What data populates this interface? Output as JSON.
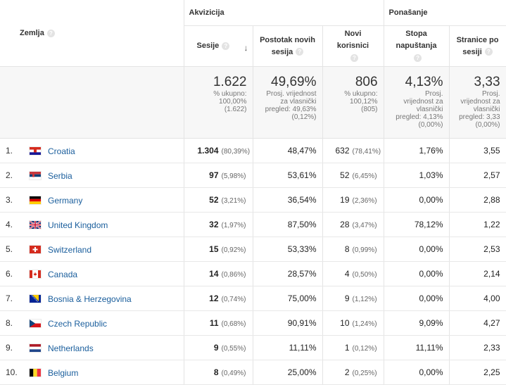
{
  "header": {
    "dimension": "Zemlja",
    "group_acquisition": "Akvizicija",
    "group_behavior": "Ponašanje",
    "m_sessions": "Sesije",
    "m_new_sessions_1": "Postotak novih",
    "m_new_sessions_2": "sesija",
    "m_new_users_1": "Novi",
    "m_new_users_2": "korisnici",
    "m_bounce_1": "Stopa",
    "m_bounce_2": "napuštanja",
    "m_pages_1": "Stranice po",
    "m_pages_2": "sesiji",
    "help": "?",
    "sort_arrow": "↓"
  },
  "totals": {
    "sessions": {
      "value": "1.622",
      "l1": "% ukupno:",
      "l2": "100,00%",
      "l3": "(1.622)"
    },
    "new_sessions": {
      "value": "49,69%",
      "l1": "Prosj. vrijednost",
      "l2": "za vlasnički",
      "l3": "pregled: 49,63%",
      "l4": "(0,12%)"
    },
    "new_users": {
      "value": "806",
      "l1": "% ukupno:",
      "l2": "100,12%",
      "l3": "(805)"
    },
    "bounce": {
      "value": "4,13%",
      "l1": "Prosj.",
      "l2": "vrijednost za",
      "l3": "vlasnički",
      "l4": "pregled: 4,13%",
      "l5": "(0,00%)"
    },
    "pages": {
      "value": "3,33",
      "l1": "Prosj.",
      "l2": "vrijednost za",
      "l3": "vlasnički",
      "l4": "pregled: 3,33",
      "l5": "(0,00%)"
    }
  },
  "rows": [
    {
      "rank": "1.",
      "country": "Croatia",
      "sessions": "1.304",
      "sessions_pct": "(80,39%)",
      "new_sessions": "48,47%",
      "new_users": "632",
      "new_users_pct": "(78,41%)",
      "bounce": "1,76%",
      "pages": "3,55"
    },
    {
      "rank": "2.",
      "country": "Serbia",
      "sessions": "97",
      "sessions_pct": "(5,98%)",
      "new_sessions": "53,61%",
      "new_users": "52",
      "new_users_pct": "(6,45%)",
      "bounce": "1,03%",
      "pages": "2,57"
    },
    {
      "rank": "3.",
      "country": "Germany",
      "sessions": "52",
      "sessions_pct": "(3,21%)",
      "new_sessions": "36,54%",
      "new_users": "19",
      "new_users_pct": "(2,36%)",
      "bounce": "0,00%",
      "pages": "2,88"
    },
    {
      "rank": "4.",
      "country": "United Kingdom",
      "sessions": "32",
      "sessions_pct": "(1,97%)",
      "new_sessions": "87,50%",
      "new_users": "28",
      "new_users_pct": "(3,47%)",
      "bounce": "78,12%",
      "pages": "1,22"
    },
    {
      "rank": "5.",
      "country": "Switzerland",
      "sessions": "15",
      "sessions_pct": "(0,92%)",
      "new_sessions": "53,33%",
      "new_users": "8",
      "new_users_pct": "(0,99%)",
      "bounce": "0,00%",
      "pages": "2,53"
    },
    {
      "rank": "6.",
      "country": "Canada",
      "sessions": "14",
      "sessions_pct": "(0,86%)",
      "new_sessions": "28,57%",
      "new_users": "4",
      "new_users_pct": "(0,50%)",
      "bounce": "0,00%",
      "pages": "2,14"
    },
    {
      "rank": "7.",
      "country": "Bosnia & Herzegovina",
      "sessions": "12",
      "sessions_pct": "(0,74%)",
      "new_sessions": "75,00%",
      "new_users": "9",
      "new_users_pct": "(1,12%)",
      "bounce": "0,00%",
      "pages": "4,00"
    },
    {
      "rank": "8.",
      "country": "Czech Republic",
      "sessions": "11",
      "sessions_pct": "(0,68%)",
      "new_sessions": "90,91%",
      "new_users": "10",
      "new_users_pct": "(1,24%)",
      "bounce": "9,09%",
      "pages": "4,27"
    },
    {
      "rank": "9.",
      "country": "Netherlands",
      "sessions": "9",
      "sessions_pct": "(0,55%)",
      "new_sessions": "11,11%",
      "new_users": "1",
      "new_users_pct": "(0,12%)",
      "bounce": "11,11%",
      "pages": "2,33"
    },
    {
      "rank": "10.",
      "country": "Belgium",
      "sessions": "8",
      "sessions_pct": "(0,49%)",
      "new_sessions": "25,00%",
      "new_users": "2",
      "new_users_pct": "(0,25%)",
      "bounce": "0,00%",
      "pages": "2,25"
    }
  ],
  "colors": {
    "link": "#1a5e9c",
    "header_bg": "#ffffff",
    "totals_bg": "#f7f7f7",
    "border": "#e4e4e4"
  }
}
